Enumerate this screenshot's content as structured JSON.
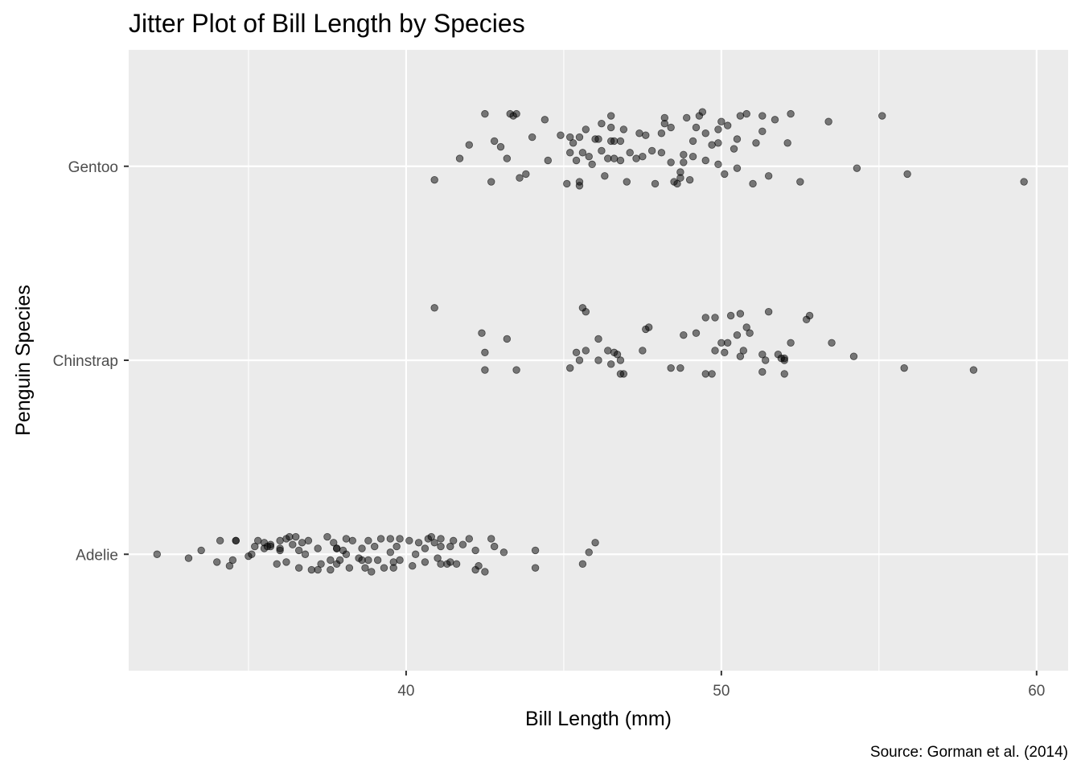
{
  "chart_data": {
    "type": "scatter",
    "title": "Jitter Plot of Bill Length by Species",
    "xlabel": "Bill Length (mm)",
    "ylabel": "Penguin Species",
    "caption": "Source: Gorman et al. (2014)",
    "xlim": [
      31.2,
      61.0
    ],
    "xticks": [
      40,
      50,
      60
    ],
    "xtick_labels": [
      "40",
      "50",
      "60"
    ],
    "categories": [
      "Adelie",
      "Chinstrap",
      "Gentoo"
    ],
    "grid": true,
    "colors": {
      "panel": "#ebebeb",
      "grid": "#ffffff",
      "point": "#000000",
      "point_opacity": 0.5,
      "text": "#4d4d4d"
    },
    "series": [
      {
        "category": "Gentoo",
        "points": [
          [
            40.9,
            -0.07
          ],
          [
            41.7,
            0.04
          ],
          [
            42.0,
            0.11
          ],
          [
            42.5,
            0.27
          ],
          [
            42.7,
            -0.08
          ],
          [
            42.8,
            0.13
          ],
          [
            43.0,
            0.1
          ],
          [
            43.2,
            0.04
          ],
          [
            43.3,
            0.27
          ],
          [
            43.4,
            0.26
          ],
          [
            43.5,
            0.27
          ],
          [
            43.6,
            -0.06
          ],
          [
            43.8,
            -0.04
          ],
          [
            44.0,
            0.15
          ],
          [
            44.4,
            0.24
          ],
          [
            44.5,
            0.03
          ],
          [
            44.9,
            0.16
          ],
          [
            45.1,
            -0.09
          ],
          [
            45.2,
            0.07
          ],
          [
            45.2,
            0.15
          ],
          [
            45.3,
            0.12
          ],
          [
            45.4,
            0.03
          ],
          [
            45.5,
            0.15
          ],
          [
            45.5,
            -0.1
          ],
          [
            45.5,
            -0.08
          ],
          [
            45.6,
            0.07
          ],
          [
            45.7,
            0.19
          ],
          [
            45.8,
            0.05
          ],
          [
            45.9,
            0.01
          ],
          [
            46.0,
            0.14
          ],
          [
            46.1,
            0.14
          ],
          [
            46.2,
            0.08
          ],
          [
            46.2,
            0.22
          ],
          [
            46.3,
            -0.05
          ],
          [
            46.4,
            0.04
          ],
          [
            46.5,
            0.2
          ],
          [
            46.5,
            0.13
          ],
          [
            46.5,
            0.26
          ],
          [
            46.6,
            0.13
          ],
          [
            46.6,
            0.04
          ],
          [
            46.8,
            0.03
          ],
          [
            46.8,
            0.13
          ],
          [
            46.9,
            0.19
          ],
          [
            47.0,
            -0.08
          ],
          [
            47.1,
            0.07
          ],
          [
            47.3,
            0.04
          ],
          [
            47.4,
            0.17
          ],
          [
            47.5,
            0.05
          ],
          [
            47.6,
            0.16
          ],
          [
            47.8,
            0.08
          ],
          [
            47.9,
            -0.09
          ],
          [
            48.1,
            0.07
          ],
          [
            48.1,
            0.17
          ],
          [
            48.2,
            0.22
          ],
          [
            48.2,
            0.25
          ],
          [
            48.4,
            0.2
          ],
          [
            48.4,
            0.02
          ],
          [
            48.5,
            -0.08
          ],
          [
            48.6,
            -0.09
          ],
          [
            48.7,
            -0.06
          ],
          [
            48.7,
            -0.03
          ],
          [
            48.8,
            0.02
          ],
          [
            48.8,
            0.06
          ],
          [
            48.9,
            0.25
          ],
          [
            49.0,
            -0.07
          ],
          [
            49.1,
            0.05
          ],
          [
            49.1,
            0.13
          ],
          [
            49.2,
            0.2
          ],
          [
            49.3,
            0.26
          ],
          [
            49.4,
            0.28
          ],
          [
            49.5,
            0.03
          ],
          [
            49.5,
            0.17
          ],
          [
            49.7,
            0.11
          ],
          [
            49.9,
            0.19
          ],
          [
            49.9,
            0.12
          ],
          [
            49.9,
            0.01
          ],
          [
            50.0,
            0.23
          ],
          [
            50.1,
            -0.04
          ],
          [
            50.2,
            0.21
          ],
          [
            50.4,
            0.09
          ],
          [
            50.5,
            -0.01
          ],
          [
            50.5,
            0.14
          ],
          [
            50.6,
            0.26
          ],
          [
            50.8,
            0.27
          ],
          [
            51.0,
            -0.09
          ],
          [
            51.1,
            0.12
          ],
          [
            51.3,
            0.18
          ],
          [
            51.3,
            0.26
          ],
          [
            51.5,
            -0.05
          ],
          [
            51.7,
            0.24
          ],
          [
            52.1,
            0.12
          ],
          [
            52.2,
            0.27
          ],
          [
            52.5,
            -0.08
          ],
          [
            53.4,
            0.23
          ],
          [
            54.3,
            -0.01
          ],
          [
            55.1,
            0.26
          ],
          [
            55.9,
            -0.04
          ],
          [
            59.6,
            -0.08
          ]
        ]
      },
      {
        "category": "Chinstrap",
        "points": [
          [
            40.9,
            0.27
          ],
          [
            42.4,
            0.14
          ],
          [
            42.5,
            0.04
          ],
          [
            42.5,
            -0.05
          ],
          [
            43.2,
            0.11
          ],
          [
            43.5,
            -0.05
          ],
          [
            45.2,
            -0.04
          ],
          [
            45.4,
            0.04
          ],
          [
            45.5,
            0.0
          ],
          [
            45.6,
            0.27
          ],
          [
            45.7,
            0.25
          ],
          [
            45.7,
            0.05
          ],
          [
            46.1,
            0.11
          ],
          [
            46.1,
            0.0
          ],
          [
            46.4,
            0.05
          ],
          [
            46.5,
            -0.02
          ],
          [
            46.6,
            0.04
          ],
          [
            46.7,
            0.03
          ],
          [
            46.8,
            -0.07
          ],
          [
            46.8,
            0.0
          ],
          [
            46.9,
            -0.07
          ],
          [
            47.5,
            0.05
          ],
          [
            47.6,
            0.16
          ],
          [
            47.7,
            0.17
          ],
          [
            48.4,
            -0.04
          ],
          [
            48.7,
            -0.04
          ],
          [
            48.8,
            0.13
          ],
          [
            49.2,
            0.14
          ],
          [
            49.5,
            -0.07
          ],
          [
            49.5,
            0.22
          ],
          [
            49.7,
            -0.07
          ],
          [
            49.8,
            0.22
          ],
          [
            49.8,
            0.05
          ],
          [
            50.0,
            0.09
          ],
          [
            50.1,
            0.04
          ],
          [
            50.2,
            0.09
          ],
          [
            50.3,
            0.23
          ],
          [
            50.5,
            0.13
          ],
          [
            50.6,
            0.24
          ],
          [
            50.6,
            0.02
          ],
          [
            50.7,
            0.05
          ],
          [
            50.8,
            0.17
          ],
          [
            50.9,
            0.14
          ],
          [
            51.3,
            0.03
          ],
          [
            51.3,
            -0.06
          ],
          [
            51.4,
            0.0
          ],
          [
            51.5,
            0.25
          ],
          [
            51.8,
            0.03
          ],
          [
            51.9,
            0.01
          ],
          [
            52.0,
            -0.07
          ],
          [
            52.0,
            0.01
          ],
          [
            52.0,
            0.0
          ],
          [
            52.2,
            0.09
          ],
          [
            52.7,
            0.21
          ],
          [
            52.8,
            0.23
          ],
          [
            53.5,
            0.09
          ],
          [
            54.2,
            0.02
          ],
          [
            55.8,
            -0.04
          ],
          [
            58.0,
            -0.05
          ]
        ]
      },
      {
        "category": "Adelie",
        "points": [
          [
            32.1,
            0.0
          ],
          [
            33.1,
            -0.02
          ],
          [
            33.5,
            0.02
          ],
          [
            34.0,
            -0.04
          ],
          [
            34.1,
            0.07
          ],
          [
            34.4,
            -0.06
          ],
          [
            34.5,
            -0.03
          ],
          [
            34.6,
            0.07
          ],
          [
            34.6,
            0.07
          ],
          [
            35.0,
            -0.01
          ],
          [
            35.1,
            0.0
          ],
          [
            35.2,
            0.04
          ],
          [
            35.3,
            0.07
          ],
          [
            35.5,
            0.03
          ],
          [
            35.5,
            0.06
          ],
          [
            35.6,
            0.04
          ],
          [
            35.7,
            0.05
          ],
          [
            35.7,
            0.04
          ],
          [
            35.9,
            -0.05
          ],
          [
            36.0,
            0.03
          ],
          [
            36.0,
            0.07
          ],
          [
            36.0,
            0.02
          ],
          [
            36.2,
            0.08
          ],
          [
            36.2,
            -0.04
          ],
          [
            36.3,
            0.09
          ],
          [
            36.4,
            0.05
          ],
          [
            36.5,
            0.09
          ],
          [
            36.6,
            -0.07
          ],
          [
            36.6,
            0.02
          ],
          [
            36.7,
            0.06
          ],
          [
            36.8,
            0.0
          ],
          [
            36.9,
            0.07
          ],
          [
            37.0,
            -0.08
          ],
          [
            37.2,
            0.03
          ],
          [
            37.2,
            -0.08
          ],
          [
            37.3,
            -0.05
          ],
          [
            37.5,
            0.09
          ],
          [
            37.6,
            -0.03
          ],
          [
            37.6,
            -0.08
          ],
          [
            37.7,
            0.06
          ],
          [
            37.8,
            0.03
          ],
          [
            37.8,
            0.03
          ],
          [
            37.8,
            -0.05
          ],
          [
            37.9,
            -0.03
          ],
          [
            38.0,
            0.02
          ],
          [
            38.1,
            0.08
          ],
          [
            38.1,
            0.0
          ],
          [
            38.2,
            -0.07
          ],
          [
            38.3,
            0.07
          ],
          [
            38.5,
            -0.02
          ],
          [
            38.6,
            0.03
          ],
          [
            38.6,
            -0.03
          ],
          [
            38.7,
            -0.07
          ],
          [
            38.8,
            0.07
          ],
          [
            38.8,
            -0.03
          ],
          [
            38.9,
            -0.09
          ],
          [
            39.0,
            0.04
          ],
          [
            39.1,
            -0.03
          ],
          [
            39.2,
            0.08
          ],
          [
            39.3,
            -0.07
          ],
          [
            39.5,
            0.08
          ],
          [
            39.5,
            0.01
          ],
          [
            39.6,
            -0.04
          ],
          [
            39.6,
            -0.07
          ],
          [
            39.7,
            0.04
          ],
          [
            39.8,
            -0.03
          ],
          [
            39.8,
            0.08
          ],
          [
            40.1,
            0.07
          ],
          [
            40.2,
            -0.06
          ],
          [
            40.3,
            0.0
          ],
          [
            40.4,
            0.06
          ],
          [
            40.6,
            0.03
          ],
          [
            40.6,
            -0.04
          ],
          [
            40.7,
            0.08
          ],
          [
            40.8,
            0.09
          ],
          [
            40.9,
            0.06
          ],
          [
            41.0,
            -0.02
          ],
          [
            41.1,
            0.04
          ],
          [
            41.1,
            -0.05
          ],
          [
            41.1,
            0.08
          ],
          [
            41.3,
            -0.05
          ],
          [
            41.4,
            0.04
          ],
          [
            41.4,
            -0.04
          ],
          [
            41.5,
            0.07
          ],
          [
            41.6,
            -0.05
          ],
          [
            41.8,
            0.05
          ],
          [
            42.0,
            0.08
          ],
          [
            42.2,
            -0.08
          ],
          [
            42.2,
            0.02
          ],
          [
            42.3,
            -0.06
          ],
          [
            42.5,
            -0.09
          ],
          [
            42.7,
            0.08
          ],
          [
            42.8,
            0.04
          ],
          [
            43.1,
            0.01
          ],
          [
            44.1,
            0.02
          ],
          [
            44.1,
            -0.07
          ],
          [
            45.6,
            -0.05
          ],
          [
            45.8,
            0.01
          ],
          [
            46.0,
            0.06
          ]
        ]
      }
    ]
  }
}
